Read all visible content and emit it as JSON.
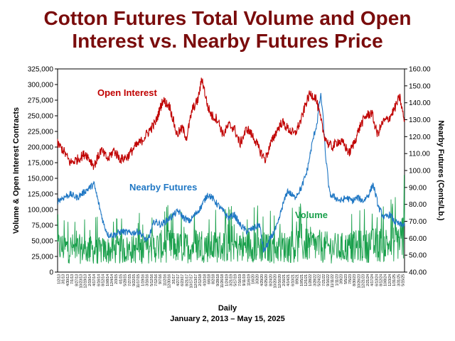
{
  "title_line1": "Cotton Futures Total Volume and Open",
  "title_line2": "Interest vs. Nearby Futures Price",
  "xlabel": "Daily",
  "date_range": "January 2, 2013 – May 15, 2025",
  "chart_data": {
    "type": "line",
    "title": "Cotton Futures Total Volume and Open Interest vs. Nearby Futures Price",
    "xlabel": "Daily",
    "ylabel_left": "Volume & Open Interest Contracts",
    "ylabel_right": "Nearby Futures (Cents/Lb.)",
    "ylim_left": [
      0,
      325000
    ],
    "ylim_right": [
      40,
      160
    ],
    "left_ticks": [
      "0",
      "25,000",
      "50,000",
      "75,000",
      "100,000",
      "125,000",
      "150,000",
      "175,000",
      "200,000",
      "225,000",
      "250,000",
      "275,000",
      "300,000",
      "325,000"
    ],
    "right_ticks": [
      "40.00",
      "50.00",
      "60.00",
      "70.00",
      "80.00",
      "90.00",
      "100.00",
      "110.00",
      "120.00",
      "130.00",
      "140.00",
      "150.00",
      "160.00"
    ],
    "x_tick_labels": [
      "1/2/13",
      "3/1/13",
      "4/30/13",
      "7/1/13",
      "8/27/13",
      "10/23/13",
      "12/19/13",
      "2/19/14",
      "4/17/14",
      "6/16/14",
      "8/12/14",
      "10/8/14",
      "12/4/14",
      "2/3/15",
      "4/1/15",
      "5/28/15",
      "7/27/15",
      "9/22/15",
      "11/17/15",
      "1/19/16",
      "3/16/16",
      "5/12/16",
      "7/12/16",
      "9/7/16",
      "11/2/16",
      "12/30/16",
      "3/1/17",
      "4/27/17",
      "6/23/17",
      "8/21/17",
      "10/17/17",
      "12/13/17",
      "2/12/18",
      "4/10/18",
      "6/6/18",
      "8/2/18",
      "9/28/18",
      "11/26/18",
      "1/24/19",
      "3/21/19",
      "5/17/19",
      "7/16/19",
      "9/11/19",
      "11/6/19",
      "1/6/20",
      "3/3/20",
      "4/29/20",
      "6/25/20",
      "8/24/20",
      "10/20/20",
      "12/16/20",
      "2/16/21",
      "4/14/21",
      "6/10/21",
      "8/9/21",
      "10/5/21",
      "12/1/21",
      "1/28/22",
      "3/28/22",
      "5/24/22",
      "7/21/22",
      "9/16/22",
      "11/11/22",
      "1/11/23",
      "3/9/23",
      "5/5/23",
      "7/5/23",
      "8/30/23",
      "10/26/23",
      "12/21/23",
      "2/21/24",
      "4/17/24",
      "6/13/24",
      "8/12/24",
      "10/8/24",
      "12/3/24",
      "1/31/25",
      "3/31/25",
      "5/15/25"
    ],
    "series": [
      {
        "name": "Open Interest",
        "axis": "left",
        "color": "#c00000",
        "x": [
          2013.0,
          2013.2,
          2013.45,
          2013.7,
          2014.0,
          2014.3,
          2014.55,
          2014.8,
          2015.0,
          2015.25,
          2015.5,
          2015.75,
          2016.0,
          2016.25,
          2016.5,
          2016.75,
          2017.0,
          2017.25,
          2017.45,
          2017.6,
          2017.8,
          2018.0,
          2018.15,
          2018.35,
          2018.5,
          2018.7,
          2018.9,
          2019.1,
          2019.3,
          2019.5,
          2019.75,
          2020.0,
          2020.2,
          2020.4,
          2020.6,
          2020.8,
          2021.0,
          2021.2,
          2021.45,
          2021.7,
          2021.85,
          2022.0,
          2022.2,
          2022.35,
          2022.5,
          2022.65,
          2022.8,
          2023.0,
          2023.2,
          2023.4,
          2023.6,
          2023.8,
          2024.0,
          2024.2,
          2024.4,
          2024.6,
          2024.8,
          2025.0,
          2025.2,
          2025.37
        ],
        "values": [
          205000,
          195000,
          175000,
          180000,
          190000,
          170000,
          195000,
          180000,
          195000,
          180000,
          185000,
          200000,
          210000,
          225000,
          240000,
          275000,
          265000,
          220000,
          230000,
          215000,
          260000,
          275000,
          310000,
          265000,
          250000,
          245000,
          220000,
          235000,
          230000,
          205000,
          230000,
          215000,
          195000,
          180000,
          205000,
          225000,
          240000,
          230000,
          220000,
          245000,
          270000,
          285000,
          280000,
          250000,
          220000,
          205000,
          200000,
          210000,
          205000,
          190000,
          210000,
          235000,
          250000,
          255000,
          220000,
          240000,
          245000,
          260000,
          280000,
          240000
        ]
      },
      {
        "name": "Nearby Futures",
        "axis": "right",
        "color": "#1f77c4",
        "x": [
          2013.0,
          2013.2,
          2013.45,
          2013.7,
          2014.0,
          2014.3,
          2014.5,
          2014.65,
          2014.8,
          2015.0,
          2015.3,
          2015.6,
          2015.9,
          2016.2,
          2016.45,
          2016.7,
          2017.0,
          2017.3,
          2017.5,
          2017.7,
          2017.9,
          2018.1,
          2018.35,
          2018.5,
          2018.7,
          2018.9,
          2019.1,
          2019.3,
          2019.5,
          2019.75,
          2020.0,
          2020.2,
          2020.35,
          2020.6,
          2020.85,
          2021.0,
          2021.2,
          2021.45,
          2021.7,
          2021.9,
          2022.1,
          2022.25,
          2022.38,
          2022.45,
          2022.55,
          2022.7,
          2022.9,
          2023.1,
          2023.3,
          2023.5,
          2023.7,
          2023.9,
          2024.1,
          2024.25,
          2024.45,
          2024.65,
          2024.85,
          2025.0,
          2025.2,
          2025.37
        ],
        "values": [
          82,
          84,
          86,
          84,
          88,
          92,
          78,
          68,
          62,
          62,
          64,
          63,
          64,
          58,
          70,
          68,
          72,
          76,
          72,
          70,
          74,
          78,
          86,
          84,
          80,
          76,
          72,
          74,
          68,
          64,
          66,
          68,
          52,
          60,
          68,
          78,
          88,
          84,
          90,
          100,
          118,
          128,
          145,
          135,
          110,
          86,
          84,
          82,
          84,
          82,
          84,
          82,
          86,
          92,
          78,
          72,
          74,
          70,
          68,
          68
        ]
      },
      {
        "name": "Volume",
        "axis": "left",
        "color": "#1aa04c",
        "x": [
          2013.0,
          2013.5,
          2014.0,
          2014.5,
          2015.0,
          2015.5,
          2016.0,
          2016.5,
          2017.0,
          2017.5,
          2018.0,
          2018.5,
          2019.0,
          2019.5,
          2020.0,
          2020.5,
          2021.0,
          2021.5,
          2022.0,
          2022.5,
          2023.0,
          2023.5,
          2024.0,
          2024.5,
          2025.0,
          2025.37
        ],
        "values": [
          40000,
          38000,
          36000,
          34000,
          35000,
          36000,
          37000,
          40000,
          42000,
          38000,
          45000,
          40000,
          42000,
          40000,
          44000,
          38000,
          40000,
          42000,
          44000,
          40000,
          38000,
          40000,
          42000,
          44000,
          46000,
          60000
        ]
      }
    ]
  }
}
